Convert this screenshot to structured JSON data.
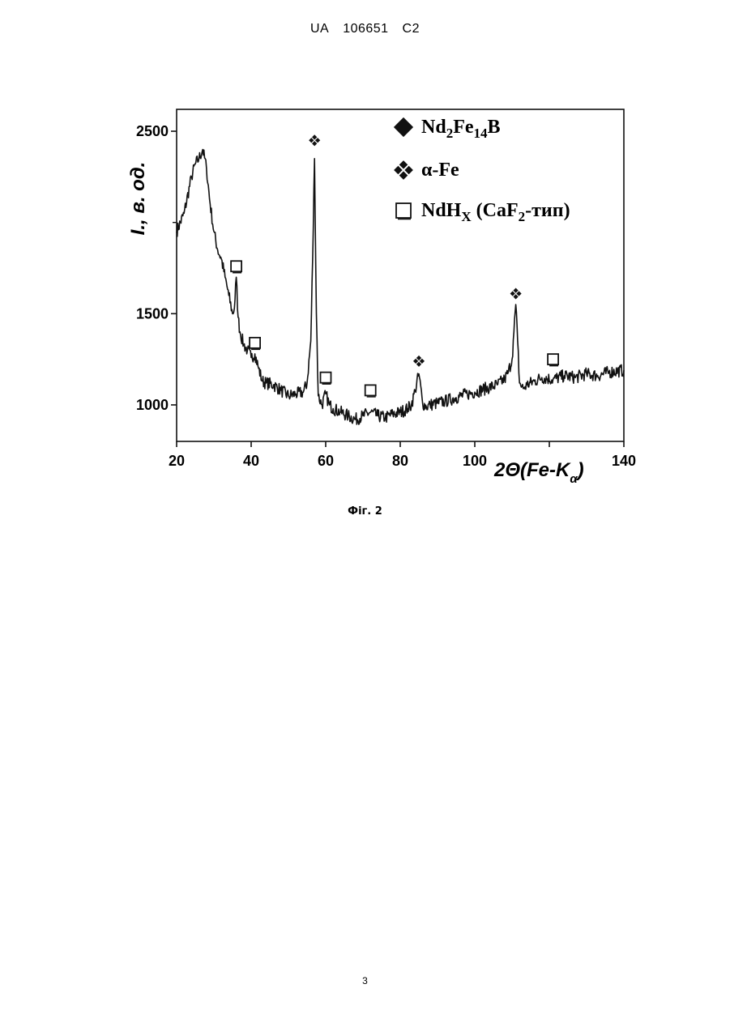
{
  "header": {
    "country": "UA",
    "number": "106651",
    "kind": "C2"
  },
  "figure_caption": "Фіг. 2",
  "page_number": "3",
  "chart_data": {
    "type": "line",
    "title": "",
    "xlabel": "2Θ(Fe-Kα)",
    "xlabel_parts": {
      "prefix": "2",
      "theta": "Θ",
      "body": "(Fe-K",
      "sub": "α",
      "close": ")"
    },
    "ylabel": "I., в. од.",
    "xlim": [
      20,
      140
    ],
    "ylim": [
      800,
      2620
    ],
    "x_ticks": [
      20,
      40,
      60,
      80,
      100,
      140
    ],
    "x_tick_labels": [
      "20",
      "40",
      "60",
      "80",
      "100",
      "140"
    ],
    "y_ticks": [
      1000,
      1500,
      2500
    ],
    "y_tick_labels": [
      "1000",
      "1500",
      "2500"
    ],
    "line_color": "#111111",
    "series": [
      {
        "x": [
          20,
          22,
          24,
          25,
          26,
          27,
          28,
          29,
          30,
          31,
          32,
          33,
          34,
          35,
          35.5,
          36,
          36.5,
          37,
          38,
          39,
          40,
          41,
          42,
          43,
          44,
          46,
          48,
          50,
          52,
          54,
          55,
          56,
          56.5,
          57,
          57.5,
          58,
          59,
          60,
          61,
          62,
          64,
          66,
          68,
          70,
          72,
          74,
          76,
          78,
          80,
          82,
          83,
          84,
          85,
          86,
          87,
          88,
          90,
          92,
          95,
          98,
          100,
          103,
          106,
          108,
          109,
          110,
          110.5,
          111,
          111.5,
          112,
          113,
          114,
          116,
          118,
          121,
          124,
          127,
          130,
          133,
          136,
          140
        ],
        "y": [
          1950,
          2050,
          2250,
          2320,
          2350,
          2400,
          2300,
          2100,
          1950,
          1850,
          1800,
          1700,
          1600,
          1500,
          1530,
          1700,
          1480,
          1400,
          1330,
          1300,
          1260,
          1280,
          1200,
          1130,
          1120,
          1110,
          1080,
          1050,
          1060,
          1070,
          1120,
          1350,
          1800,
          2350,
          1500,
          1050,
          1000,
          1060,
          1000,
          980,
          960,
          940,
          920,
          940,
          960,
          940,
          930,
          950,
          960,
          980,
          1000,
          1080,
          1170,
          1010,
          990,
          1000,
          1010,
          1020,
          1040,
          1060,
          1070,
          1090,
          1110,
          1140,
          1180,
          1250,
          1400,
          1550,
          1350,
          1120,
          1090,
          1110,
          1130,
          1150,
          1140,
          1160,
          1150,
          1170,
          1160,
          1180,
          1190
        ]
      }
    ],
    "legend": {
      "position": "top-right",
      "entries": [
        {
          "marker": "filled-diamond",
          "label_parts": [
            "Nd",
            "2",
            "Fe",
            "14",
            "B"
          ]
        },
        {
          "marker": "four-diamond-cluster",
          "label_parts": [
            "α-Fe"
          ]
        },
        {
          "marker": "open-square",
          "label_parts": [
            "NdH",
            "X",
            " (CaF",
            "2",
            "-тип)"
          ]
        }
      ]
    },
    "annotations": [
      {
        "marker": "open-square",
        "x": 36,
        "y": 1760
      },
      {
        "marker": "open-square",
        "x": 41,
        "y": 1340
      },
      {
        "marker": "four-diamond-cluster",
        "x": 57,
        "y": 2450
      },
      {
        "marker": "open-square",
        "x": 60,
        "y": 1150
      },
      {
        "marker": "open-square",
        "x": 72,
        "y": 1080
      },
      {
        "marker": "four-diamond-cluster",
        "x": 85,
        "y": 1240
      },
      {
        "marker": "four-diamond-cluster",
        "x": 111,
        "y": 1610
      },
      {
        "marker": "open-square",
        "x": 121,
        "y": 1250
      }
    ]
  }
}
